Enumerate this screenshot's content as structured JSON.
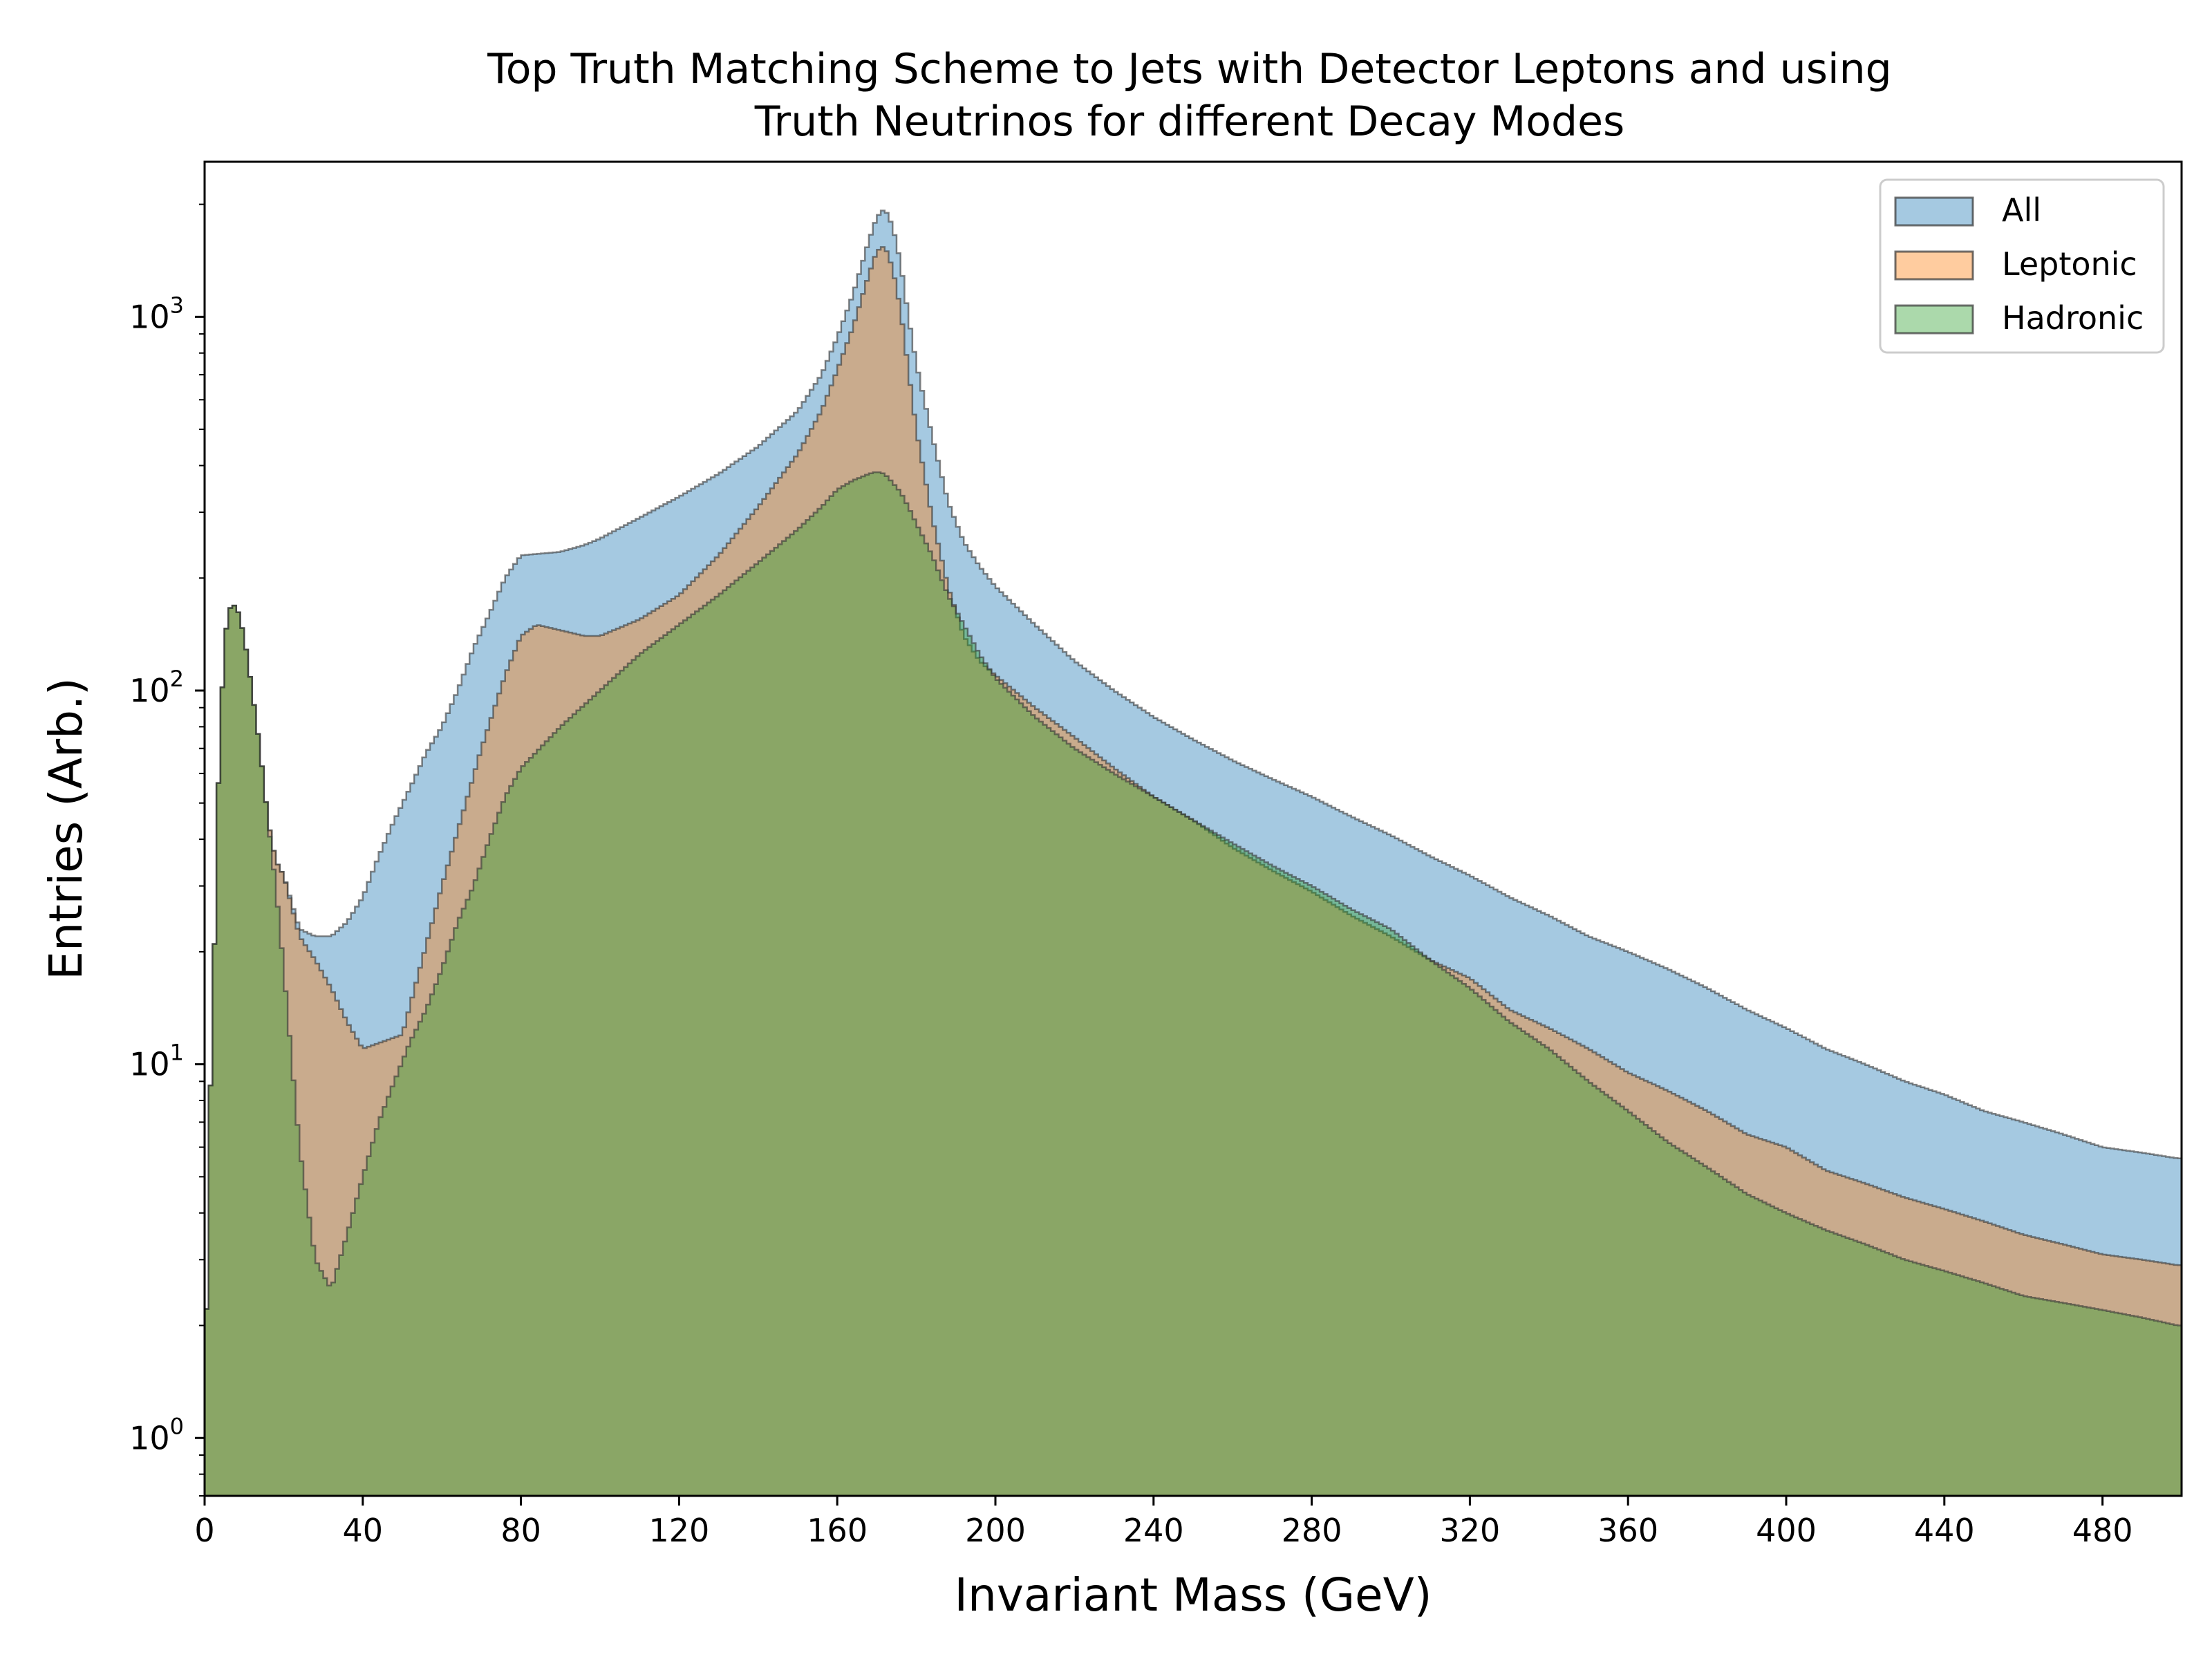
{
  "colors": {
    "all": "#1f77b4",
    "leptonic": "#ff7f0e",
    "hadronic": "#2ca02c",
    "edge": "#333333"
  },
  "chart_data": {
    "type": "histogram",
    "title_line1": "Top Truth Matching Scheme to Jets with Detector Leptons and using",
    "title_line2": "Truth Neutrinos for different Decay Modes",
    "xlabel": "Invariant Mass (GeV)",
    "ylabel": "Entries (Arb.)",
    "x_range": [
      0,
      500
    ],
    "y_range": [
      0.7,
      2600
    ],
    "y_scale": "log",
    "x_ticks": [
      0,
      40,
      80,
      120,
      160,
      200,
      240,
      280,
      320,
      360,
      400,
      440,
      480
    ],
    "x_tick_labels": [
      "0",
      "40",
      "80",
      "120",
      "160",
      "200",
      "240",
      "280",
      "320",
      "360",
      "400",
      "440",
      "480"
    ],
    "y_ticks": [
      1,
      10,
      100,
      1000
    ],
    "y_tick_labels": [
      {
        "base": "10",
        "exp": "0"
      },
      {
        "base": "10",
        "exp": "1"
      },
      {
        "base": "10",
        "exp": "2"
      },
      {
        "base": "10",
        "exp": "3"
      }
    ],
    "legend_position": "top-right",
    "alpha": 0.4,
    "bin_width": 1,
    "series": [
      {
        "name": "All",
        "key": "all",
        "points": [
          [
            0,
            0.7
          ],
          [
            1,
            7
          ],
          [
            2,
            11
          ],
          [
            3,
            40
          ],
          [
            4,
            80
          ],
          [
            5,
            130
          ],
          [
            6,
            165
          ],
          [
            8,
            170
          ],
          [
            10,
            140
          ],
          [
            12,
            100
          ],
          [
            14,
            70
          ],
          [
            16,
            45
          ],
          [
            18,
            35
          ],
          [
            20,
            32
          ],
          [
            24,
            23
          ],
          [
            28,
            22
          ],
          [
            32,
            22
          ],
          [
            36,
            24
          ],
          [
            40,
            28
          ],
          [
            44,
            36
          ],
          [
            48,
            45
          ],
          [
            52,
            55
          ],
          [
            56,
            68
          ],
          [
            60,
            80
          ],
          [
            64,
            100
          ],
          [
            68,
            130
          ],
          [
            72,
            160
          ],
          [
            76,
            200
          ],
          [
            80,
            230
          ],
          [
            84,
            232
          ],
          [
            90,
            235
          ],
          [
            96,
            245
          ],
          [
            100,
            255
          ],
          [
            110,
            290
          ],
          [
            120,
            330
          ],
          [
            130,
            380
          ],
          [
            140,
            450
          ],
          [
            150,
            560
          ],
          [
            156,
            700
          ],
          [
            160,
            880
          ],
          [
            164,
            1150
          ],
          [
            168,
            1600
          ],
          [
            170,
            1850
          ],
          [
            172,
            1950
          ],
          [
            174,
            1750
          ],
          [
            176,
            1400
          ],
          [
            178,
            1000
          ],
          [
            180,
            750
          ],
          [
            184,
            480
          ],
          [
            188,
            320
          ],
          [
            192,
            250
          ],
          [
            196,
            215
          ],
          [
            200,
            190
          ],
          [
            210,
            150
          ],
          [
            220,
            120
          ],
          [
            230,
            100
          ],
          [
            240,
            85
          ],
          [
            250,
            74
          ],
          [
            260,
            65
          ],
          [
            270,
            58
          ],
          [
            280,
            52
          ],
          [
            290,
            46
          ],
          [
            300,
            41
          ],
          [
            310,
            36
          ],
          [
            320,
            32
          ],
          [
            330,
            28
          ],
          [
            340,
            25
          ],
          [
            350,
            22
          ],
          [
            360,
            20
          ],
          [
            370,
            18
          ],
          [
            380,
            16
          ],
          [
            390,
            14
          ],
          [
            400,
            12.5
          ],
          [
            410,
            11
          ],
          [
            420,
            10
          ],
          [
            430,
            9
          ],
          [
            440,
            8.3
          ],
          [
            450,
            7.5
          ],
          [
            460,
            7
          ],
          [
            470,
            6.5
          ],
          [
            480,
            6
          ],
          [
            490,
            5.8
          ],
          [
            499,
            5.6
          ]
        ]
      },
      {
        "name": "Leptonic",
        "key": "leptonic",
        "points": [
          [
            0,
            0.7
          ],
          [
            1,
            7
          ],
          [
            2,
            11
          ],
          [
            3,
            40
          ],
          [
            4,
            80
          ],
          [
            5,
            130
          ],
          [
            6,
            165
          ],
          [
            8,
            170
          ],
          [
            10,
            140
          ],
          [
            12,
            100
          ],
          [
            14,
            70
          ],
          [
            16,
            45
          ],
          [
            18,
            35
          ],
          [
            20,
            32
          ],
          [
            24,
            22
          ],
          [
            28,
            19
          ],
          [
            32,
            16
          ],
          [
            36,
            13
          ],
          [
            40,
            11
          ],
          [
            50,
            12
          ],
          [
            60,
            30
          ],
          [
            70,
            70
          ],
          [
            76,
            110
          ],
          [
            80,
            140
          ],
          [
            84,
            150
          ],
          [
            90,
            145
          ],
          [
            96,
            140
          ],
          [
            100,
            140
          ],
          [
            110,
            155
          ],
          [
            120,
            180
          ],
          [
            130,
            230
          ],
          [
            140,
            310
          ],
          [
            150,
            430
          ],
          [
            156,
            560
          ],
          [
            160,
            720
          ],
          [
            164,
            940
          ],
          [
            168,
            1300
          ],
          [
            170,
            1500
          ],
          [
            172,
            1550
          ],
          [
            174,
            1350
          ],
          [
            176,
            1050
          ],
          [
            178,
            720
          ],
          [
            180,
            500
          ],
          [
            184,
            290
          ],
          [
            188,
            190
          ],
          [
            192,
            140
          ],
          [
            196,
            120
          ],
          [
            200,
            110
          ],
          [
            210,
            90
          ],
          [
            220,
            75
          ],
          [
            230,
            62
          ],
          [
            240,
            52
          ],
          [
            250,
            45
          ],
          [
            260,
            38
          ],
          [
            270,
            33
          ],
          [
            280,
            29
          ],
          [
            290,
            25
          ],
          [
            300,
            22
          ],
          [
            310,
            19
          ],
          [
            320,
            17
          ],
          [
            330,
            14
          ],
          [
            340,
            12.5
          ],
          [
            350,
            11
          ],
          [
            360,
            9.5
          ],
          [
            370,
            8.5
          ],
          [
            380,
            7.5
          ],
          [
            390,
            6.5
          ],
          [
            400,
            6
          ],
          [
            410,
            5.2
          ],
          [
            420,
            4.8
          ],
          [
            430,
            4.4
          ],
          [
            440,
            4.1
          ],
          [
            450,
            3.8
          ],
          [
            460,
            3.5
          ],
          [
            470,
            3.3
          ],
          [
            480,
            3.1
          ],
          [
            490,
            3
          ],
          [
            499,
            2.9
          ]
        ]
      },
      {
        "name": "Hadronic",
        "key": "hadronic",
        "points": [
          [
            0,
            0.7
          ],
          [
            1,
            7
          ],
          [
            2,
            11
          ],
          [
            3,
            40
          ],
          [
            4,
            80
          ],
          [
            5,
            130
          ],
          [
            6,
            165
          ],
          [
            8,
            170
          ],
          [
            10,
            140
          ],
          [
            12,
            100
          ],
          [
            14,
            70
          ],
          [
            16,
            45
          ],
          [
            18,
            30
          ],
          [
            20,
            18
          ],
          [
            24,
            6
          ],
          [
            28,
            3
          ],
          [
            32,
            2.5
          ],
          [
            36,
            3.5
          ],
          [
            40,
            5
          ],
          [
            44,
            7
          ],
          [
            48,
            9
          ],
          [
            52,
            11.5
          ],
          [
            56,
            14
          ],
          [
            60,
            18
          ],
          [
            64,
            24
          ],
          [
            68,
            30
          ],
          [
            72,
            40
          ],
          [
            76,
            52
          ],
          [
            80,
            62
          ],
          [
            90,
            80
          ],
          [
            100,
            100
          ],
          [
            110,
            125
          ],
          [
            120,
            150
          ],
          [
            130,
            180
          ],
          [
            140,
            220
          ],
          [
            150,
            270
          ],
          [
            156,
            310
          ],
          [
            160,
            345
          ],
          [
            164,
            365
          ],
          [
            168,
            380
          ],
          [
            170,
            385
          ],
          [
            172,
            380
          ],
          [
            174,
            360
          ],
          [
            176,
            340
          ],
          [
            178,
            310
          ],
          [
            180,
            280
          ],
          [
            184,
            230
          ],
          [
            188,
            180
          ],
          [
            192,
            150
          ],
          [
            196,
            125
          ],
          [
            200,
            108
          ],
          [
            210,
            85
          ],
          [
            220,
            70
          ],
          [
            230,
            60
          ],
          [
            240,
            52
          ],
          [
            250,
            45
          ],
          [
            260,
            39
          ],
          [
            270,
            34
          ],
          [
            280,
            30
          ],
          [
            290,
            26
          ],
          [
            300,
            23
          ],
          [
            310,
            19
          ],
          [
            320,
            16
          ],
          [
            330,
            13
          ],
          [
            340,
            11
          ],
          [
            350,
            9
          ],
          [
            360,
            7.5
          ],
          [
            370,
            6.2
          ],
          [
            380,
            5.3
          ],
          [
            390,
            4.5
          ],
          [
            400,
            4
          ],
          [
            410,
            3.6
          ],
          [
            420,
            3.3
          ],
          [
            430,
            3
          ],
          [
            440,
            2.8
          ],
          [
            450,
            2.6
          ],
          [
            460,
            2.4
          ],
          [
            470,
            2.3
          ],
          [
            480,
            2.2
          ],
          [
            490,
            2.1
          ],
          [
            499,
            2
          ]
        ]
      }
    ]
  }
}
